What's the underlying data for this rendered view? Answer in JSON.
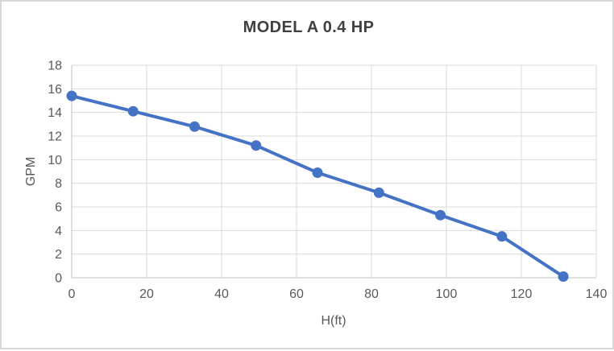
{
  "window": {
    "background": "#ffffff",
    "border_color": "#d7d7d7"
  },
  "chart_data": {
    "type": "line",
    "title": "MODEL A 0.4 HP",
    "xlabel": "H(ft)",
    "ylabel": "GPM",
    "x": [
      0,
      16.4,
      32.8,
      49.2,
      65.6,
      82.0,
      98.4,
      114.8,
      131.2
    ],
    "y": [
      15.4,
      14.1,
      12.8,
      11.2,
      8.9,
      7.2,
      5.3,
      3.5,
      0.1
    ],
    "xlim": [
      0,
      140
    ],
    "ylim": [
      0,
      18
    ],
    "xticks": [
      0,
      20,
      40,
      60,
      80,
      100,
      120,
      140
    ],
    "yticks": [
      0,
      2,
      4,
      6,
      8,
      10,
      12,
      14,
      16,
      18
    ],
    "grid": true,
    "legend": "none",
    "line_color": "#4472C4",
    "marker_color": "#4472C4",
    "marker": "circle",
    "gridline_color": "#d9d9d9",
    "axis_line_color": "#bfbfbf",
    "tick_label_color": "#595959",
    "title_color": "#404040"
  }
}
